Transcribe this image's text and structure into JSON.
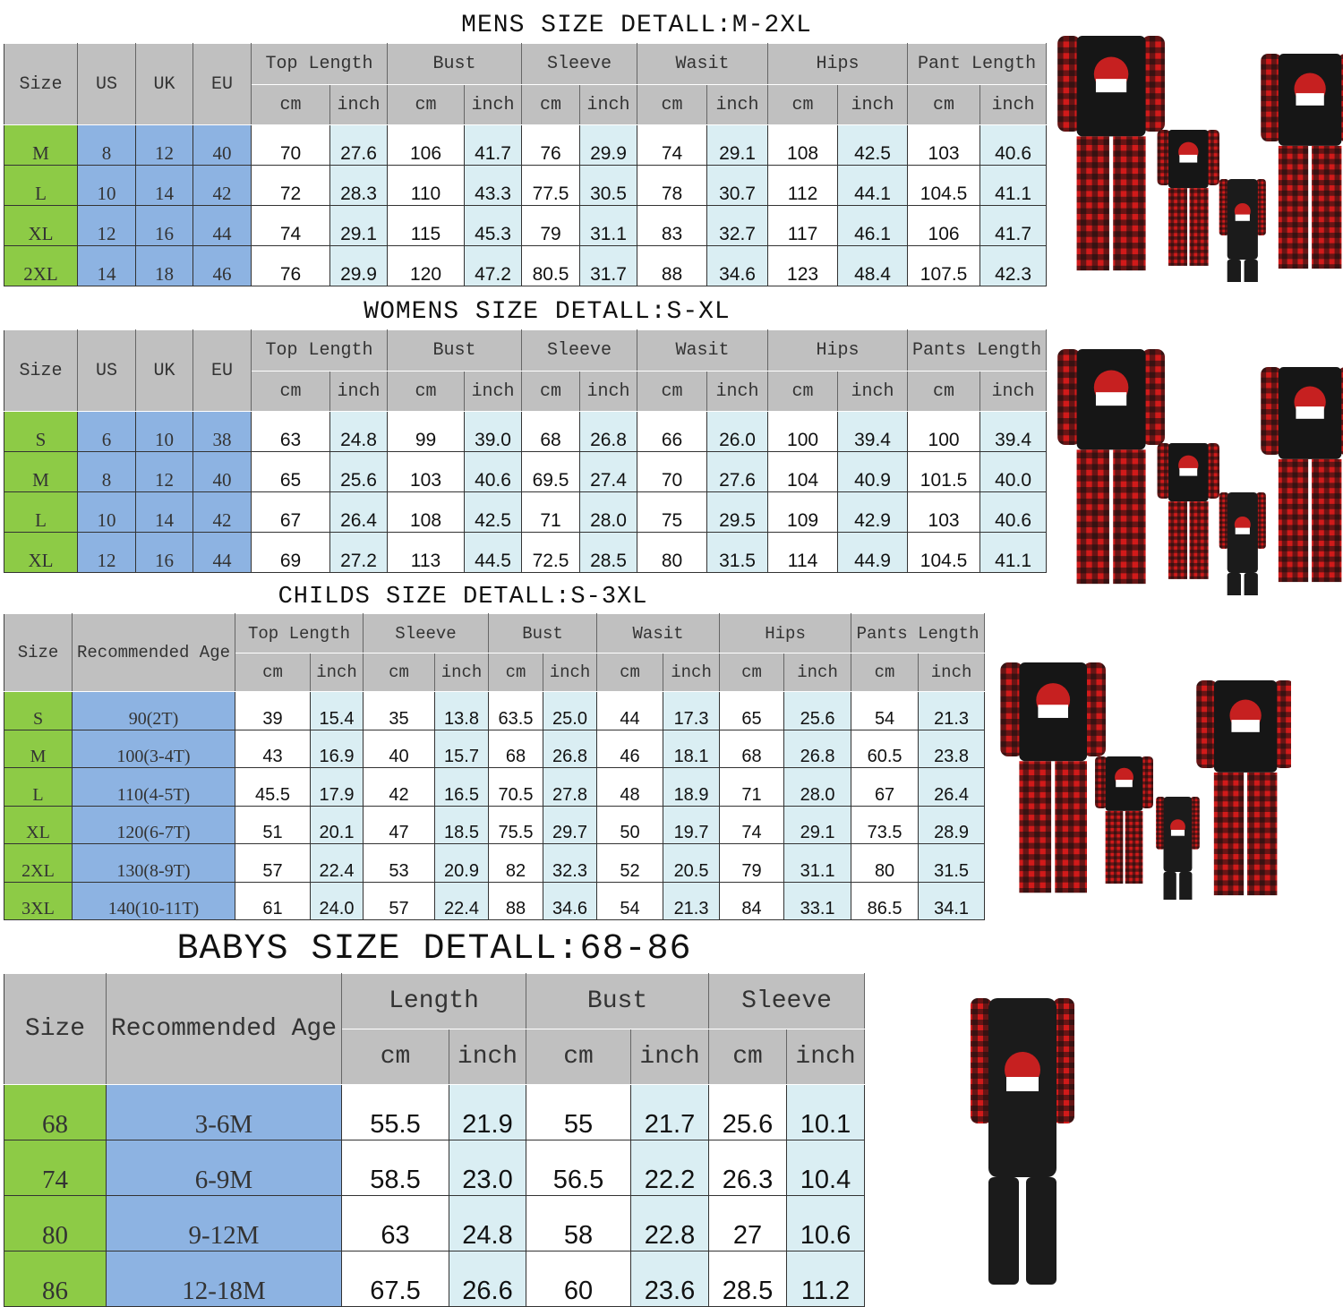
{
  "colors": {
    "header": "#c0c0c0",
    "size": "#8dcb46",
    "ref": "#8db3e2",
    "inch": "#daeef3"
  },
  "mens": {
    "title": "MENS SIZE DETALL:M-2XL",
    "fixed_headers": [
      "Size",
      "US",
      "UK",
      "EU"
    ],
    "groups": [
      "Top Length",
      "Bust",
      "Sleeve",
      "Wasit",
      "Hips",
      "Pant Length"
    ],
    "units": [
      "cm",
      "inch"
    ],
    "rows": [
      [
        "M",
        "8",
        "12",
        "40",
        "70",
        "27.6",
        "106",
        "41.7",
        "76",
        "29.9",
        "74",
        "29.1",
        "108",
        "42.5",
        "103",
        "40.6"
      ],
      [
        "L",
        "10",
        "14",
        "42",
        "72",
        "28.3",
        "110",
        "43.3",
        "77.5",
        "30.5",
        "78",
        "30.7",
        "112",
        "44.1",
        "104.5",
        "41.1"
      ],
      [
        "XL",
        "12",
        "16",
        "44",
        "74",
        "29.1",
        "115",
        "45.3",
        "79",
        "31.1",
        "83",
        "32.7",
        "117",
        "46.1",
        "106",
        "41.7"
      ],
      [
        "2XL",
        "14",
        "18",
        "46",
        "76",
        "29.9",
        "120",
        "47.2",
        "80.5",
        "31.7",
        "88",
        "34.6",
        "123",
        "48.4",
        "107.5",
        "42.3"
      ]
    ]
  },
  "womens": {
    "title": "WOMENS SIZE DETALL:S-XL",
    "fixed_headers": [
      "Size",
      "US",
      "UK",
      "EU"
    ],
    "groups": [
      "Top Length",
      "Bust",
      "Sleeve",
      "Wasit",
      "Hips",
      "Pants Length"
    ],
    "units": [
      "cm",
      "inch"
    ],
    "rows": [
      [
        "S",
        "6",
        "10",
        "38",
        "63",
        "24.8",
        "99",
        "39.0",
        "68",
        "26.8",
        "66",
        "26.0",
        "100",
        "39.4",
        "100",
        "39.4"
      ],
      [
        "M",
        "8",
        "12",
        "40",
        "65",
        "25.6",
        "103",
        "40.6",
        "69.5",
        "27.4",
        "70",
        "27.6",
        "104",
        "40.9",
        "101.5",
        "40.0"
      ],
      [
        "L",
        "10",
        "14",
        "42",
        "67",
        "26.4",
        "108",
        "42.5",
        "71",
        "28.0",
        "75",
        "29.5",
        "109",
        "42.9",
        "103",
        "40.6"
      ],
      [
        "XL",
        "12",
        "16",
        "44",
        "69",
        "27.2",
        "113",
        "44.5",
        "72.5",
        "28.5",
        "80",
        "31.5",
        "114",
        "44.9",
        "104.5",
        "41.1"
      ]
    ]
  },
  "childs": {
    "title": "CHILDS SIZE DETALL:S-3XL",
    "fixed_headers": [
      "Size",
      "Recommended Age"
    ],
    "groups": [
      "Top Length",
      "Sleeve",
      "Bust",
      "Wasit",
      "Hips",
      "Pants Length"
    ],
    "units": [
      "cm",
      "inch"
    ],
    "rows": [
      [
        "S",
        "90(2T)",
        "39",
        "15.4",
        "35",
        "13.8",
        "63.5",
        "25.0",
        "44",
        "17.3",
        "65",
        "25.6",
        "54",
        "21.3"
      ],
      [
        "M",
        "100(3-4T)",
        "43",
        "16.9",
        "40",
        "15.7",
        "68",
        "26.8",
        "46",
        "18.1",
        "68",
        "26.8",
        "60.5",
        "23.8"
      ],
      [
        "L",
        "110(4-5T)",
        "45.5",
        "17.9",
        "42",
        "16.5",
        "70.5",
        "27.8",
        "48",
        "18.9",
        "71",
        "28.0",
        "67",
        "26.4"
      ],
      [
        "XL",
        "120(6-7T)",
        "51",
        "20.1",
        "47",
        "18.5",
        "75.5",
        "29.7",
        "50",
        "19.7",
        "74",
        "29.1",
        "73.5",
        "28.9"
      ],
      [
        "2XL",
        "130(8-9T)",
        "57",
        "22.4",
        "53",
        "20.9",
        "82",
        "32.3",
        "52",
        "20.5",
        "79",
        "31.1",
        "80",
        "31.5"
      ],
      [
        "3XL",
        "140(10-11T)",
        "61",
        "24.0",
        "57",
        "22.4",
        "88",
        "34.6",
        "54",
        "21.3",
        "84",
        "33.1",
        "86.5",
        "34.1"
      ]
    ]
  },
  "babys": {
    "title": "BABYS SIZE DETALL:68-86",
    "fixed_headers": [
      "Size",
      "Recommended Age"
    ],
    "groups": [
      "Length",
      "Bust",
      "Sleeve"
    ],
    "units": [
      "cm",
      "inch"
    ],
    "rows": [
      [
        "68",
        "3-6M",
        "55.5",
        "21.9",
        "55",
        "21.7",
        "25.6",
        "10.1"
      ],
      [
        "74",
        "6-9M",
        "58.5",
        "23.0",
        "56.5",
        "22.2",
        "26.3",
        "10.4"
      ],
      [
        "80",
        "9-12M",
        "63",
        "24.8",
        "58",
        "22.8",
        "27",
        "10.6"
      ],
      [
        "86",
        "12-18M",
        "67.5",
        "26.6",
        "60",
        "23.6",
        "28.5",
        "11.2"
      ]
    ]
  }
}
